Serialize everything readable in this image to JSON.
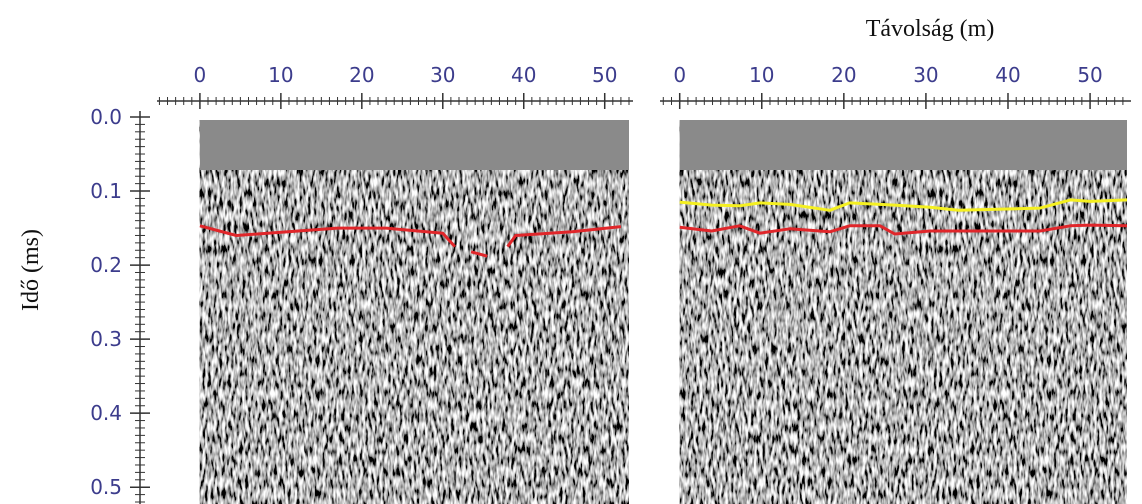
{
  "chart_data": [
    {
      "type": "line",
      "ylabel": "Idő (ms)",
      "xlim": [
        -5.3,
        53
      ],
      "ylim": [
        0,
        0.52
      ],
      "xticks": [
        0,
        10,
        20,
        30,
        40,
        50
      ],
      "x_minor_step": 1,
      "yticks": [
        {
          "value": 0,
          "label": "0.0"
        },
        0.1,
        0.2,
        0.3,
        0.4,
        0.5
      ],
      "y_minor_step": 0.01,
      "show_yaxis": true,
      "x": [
        0,
        4.5,
        17,
        23,
        30,
        31.5,
        32.5,
        33.5,
        35.5,
        37,
        38,
        39,
        46,
        52
      ],
      "series": [
        {
          "color": "#e0262a",
          "values": [
            0.147,
            0.16,
            0.15,
            0.15,
            0.157,
            0.175,
            null,
            0.182,
            0.188,
            null,
            0.175,
            0.16,
            0.155,
            0.148
          ]
        }
      ]
    },
    {
      "type": "line",
      "xlabel": "Távolság (m)",
      "xlim": [
        -2.4,
        54.5
      ],
      "ylim": [
        0,
        0.52
      ],
      "xticks": [
        0,
        10,
        20,
        30,
        40,
        50
      ],
      "x_minor_step": 1,
      "show_yaxis": false,
      "x": [
        0,
        3.9,
        7.3,
        9.8,
        13.4,
        18.3,
        20.7,
        24.4,
        26.2,
        30.5,
        34,
        43.9,
        47.6,
        50,
        54.5
      ],
      "series": [
        {
          "color": "#f5f020",
          "values": [
            0.115,
            0.119,
            0.12,
            0.116,
            0.118,
            0.126,
            0.116,
            0.118,
            0.119,
            0.122,
            0.126,
            0.123,
            0.112,
            0.114,
            0.112
          ]
        },
        {
          "color": "#e0262a",
          "values": [
            0.149,
            0.154,
            0.147,
            0.157,
            0.151,
            0.155,
            0.147,
            0.147,
            0.158,
            0.154,
            0.154,
            0.154,
            0.147,
            0.146,
            0.147
          ]
        }
      ]
    }
  ]
}
